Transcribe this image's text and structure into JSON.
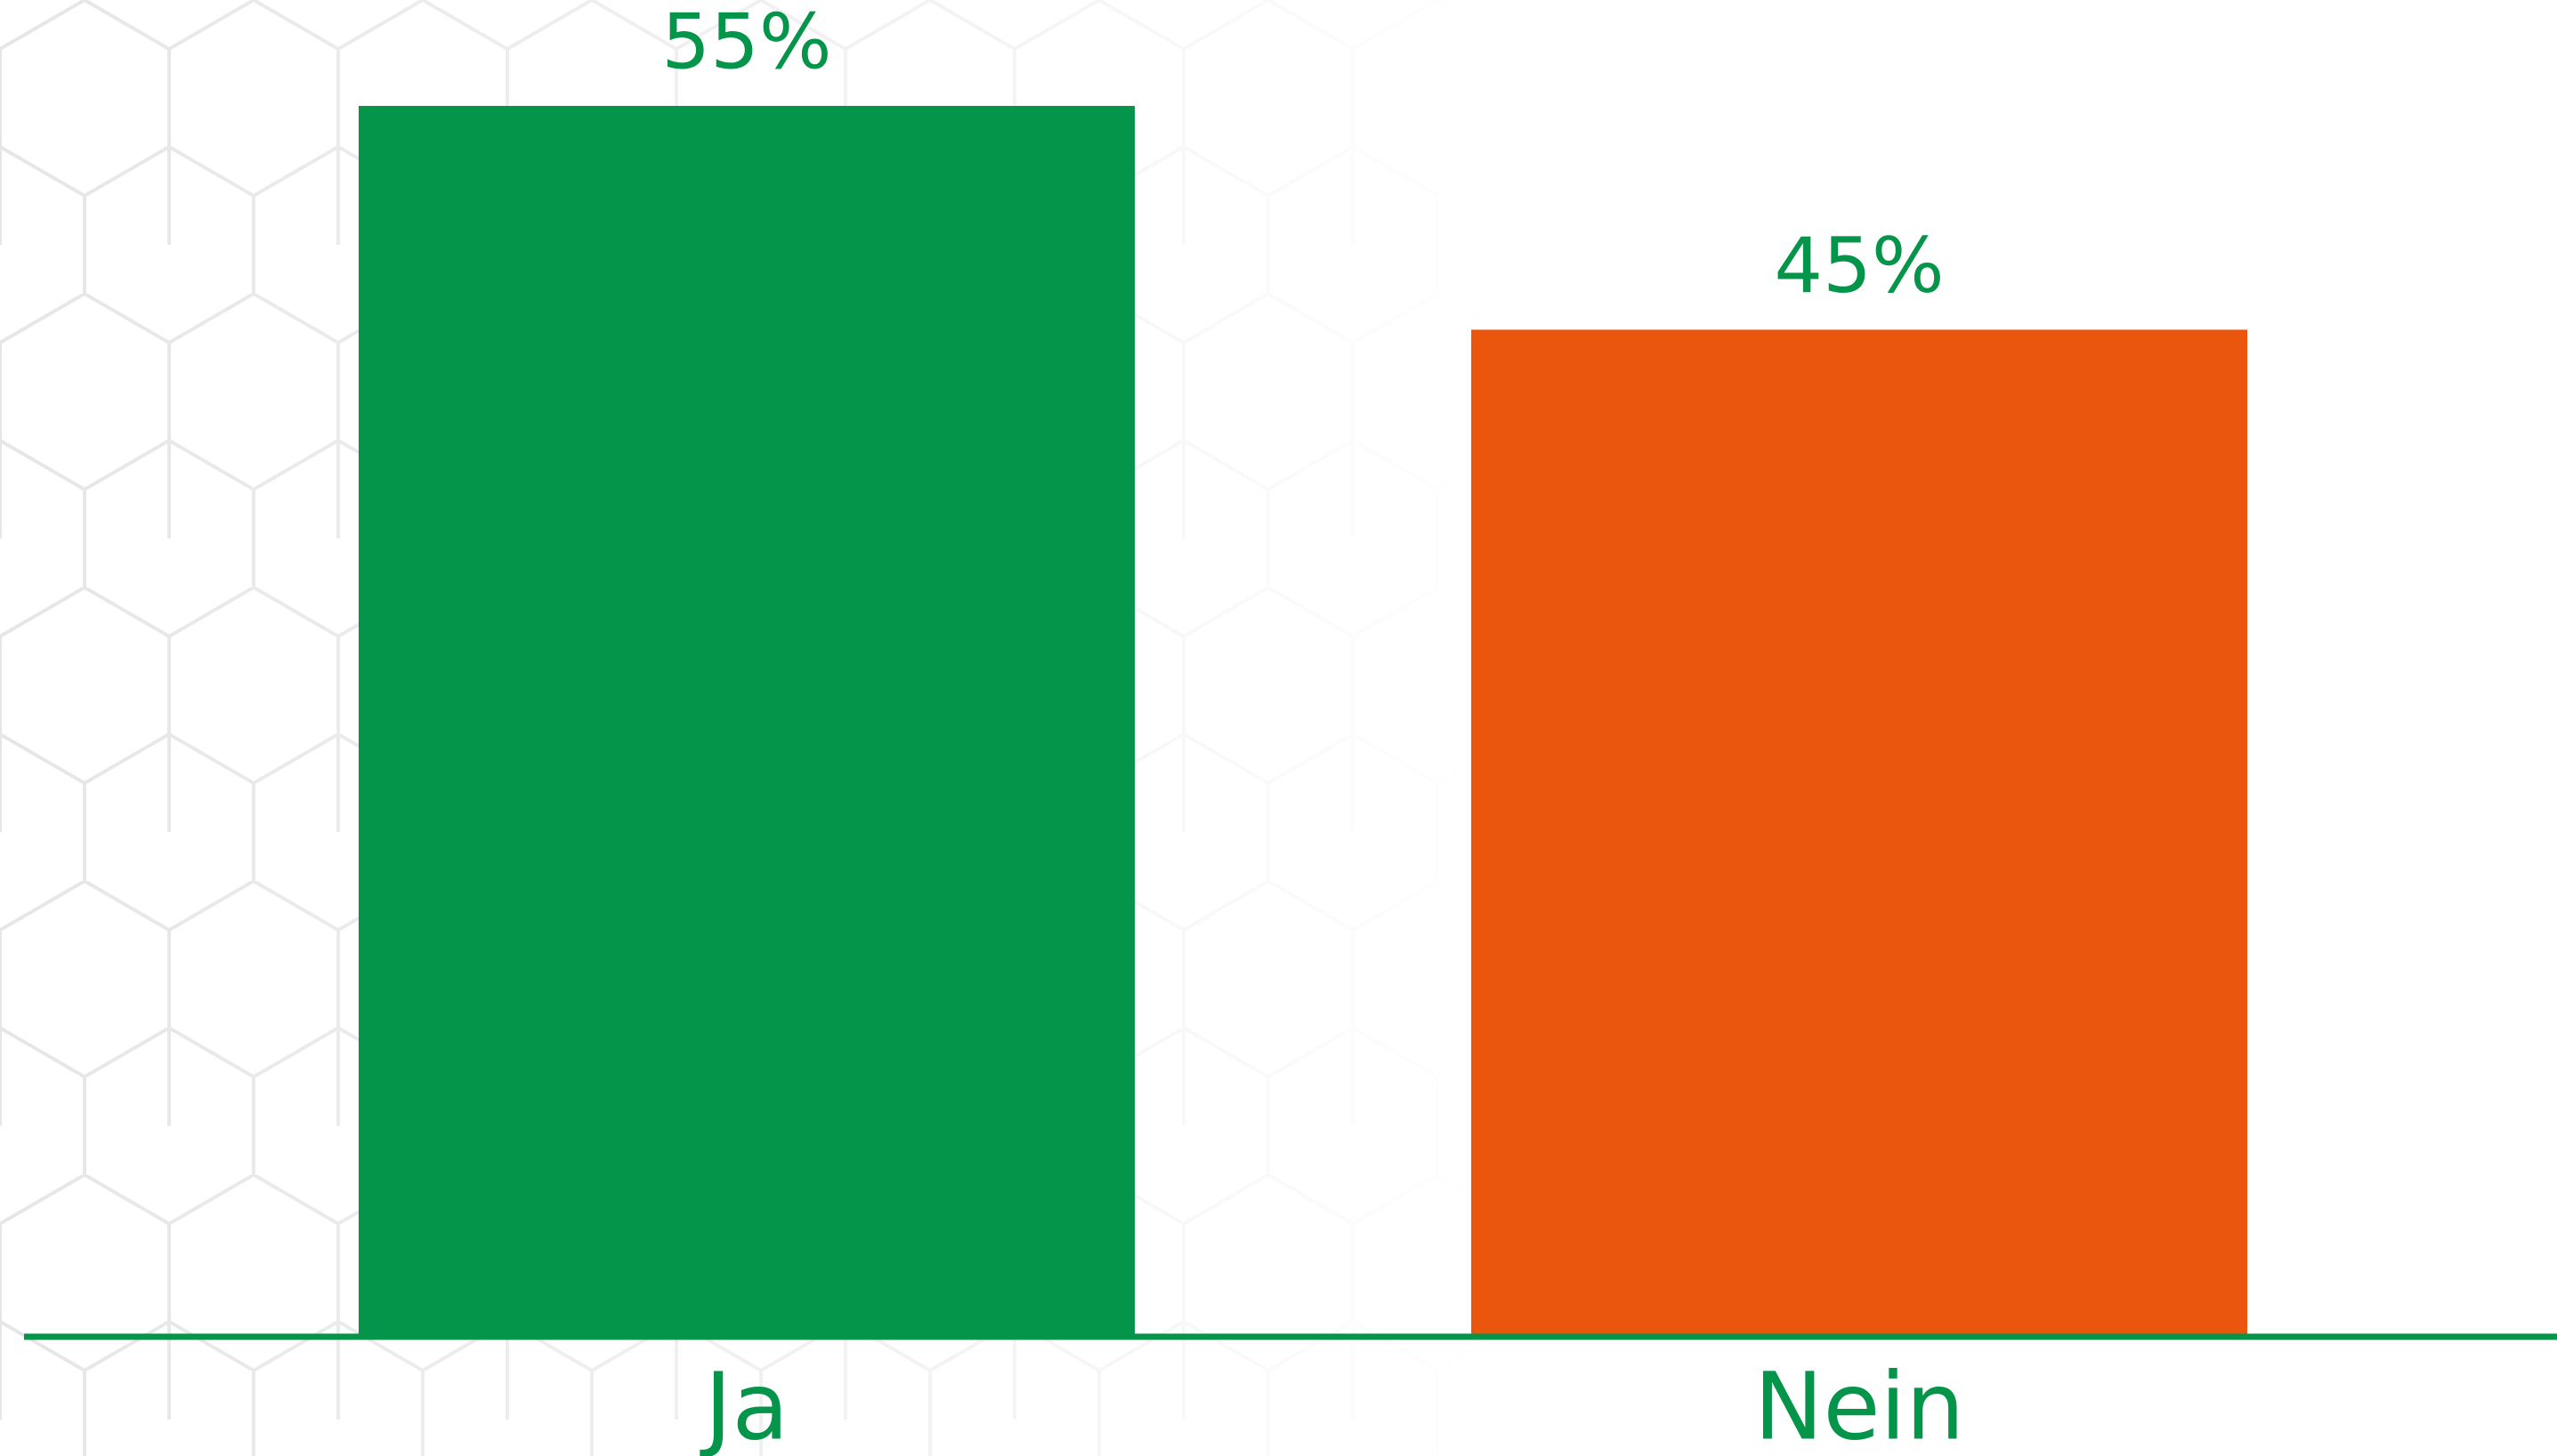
{
  "chart_data": {
    "type": "bar",
    "categories": [
      "Ja",
      "Nein"
    ],
    "values": [
      55,
      45
    ],
    "value_labels": [
      "55%",
      "45%"
    ],
    "colors": [
      "#04944a",
      "#ea560d"
    ]
  }
}
